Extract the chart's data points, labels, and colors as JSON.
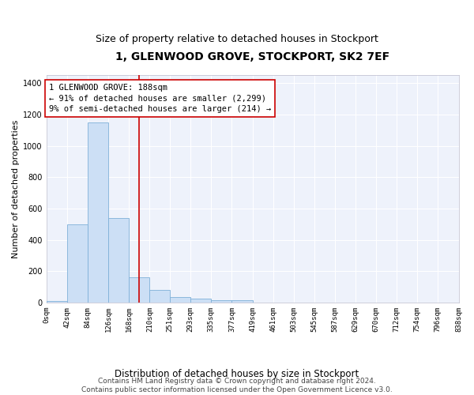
{
  "title": "1, GLENWOOD GROVE, STOCKPORT, SK2 7EF",
  "subtitle": "Size of property relative to detached houses in Stockport",
  "xlabel": "Distribution of detached houses by size in Stockport",
  "ylabel": "Number of detached properties",
  "bar_color": "#ccdff5",
  "bar_edge_color": "#7fb0d8",
  "background_color": "#eef2fb",
  "grid_color": "#ffffff",
  "bin_labels": [
    "0sqm",
    "42sqm",
    "84sqm",
    "126sqm",
    "168sqm",
    "210sqm",
    "251sqm",
    "293sqm",
    "335sqm",
    "377sqm",
    "419sqm",
    "461sqm",
    "503sqm",
    "545sqm",
    "587sqm",
    "629sqm",
    "670sqm",
    "712sqm",
    "754sqm",
    "796sqm",
    "838sqm"
  ],
  "bar_heights": [
    10,
    500,
    1150,
    540,
    160,
    80,
    35,
    25,
    15,
    15,
    0,
    0,
    0,
    0,
    0,
    0,
    0,
    0,
    0,
    0
  ],
  "bin_edges": [
    0,
    42,
    84,
    126,
    168,
    210,
    251,
    293,
    335,
    377,
    419,
    461,
    503,
    545,
    587,
    629,
    670,
    712,
    754,
    796,
    838
  ],
  "property_size": 188,
  "vline_color": "#cc0000",
  "annotation_line1": "1 GLENWOOD GROVE: 188sqm",
  "annotation_line2": "← 91% of detached houses are smaller (2,299)",
  "annotation_line3": "9% of semi-detached houses are larger (214) →",
  "annotation_box_color": "#cc0000",
  "ylim": [
    0,
    1450
  ],
  "yticks": [
    0,
    200,
    400,
    600,
    800,
    1000,
    1200,
    1400
  ],
  "footnote": "Contains HM Land Registry data © Crown copyright and database right 2024.\nContains public sector information licensed under the Open Government Licence v3.0.",
  "title_fontsize": 10,
  "subtitle_fontsize": 9,
  "annotation_fontsize": 7.5,
  "footnote_fontsize": 6.5,
  "ylabel_fontsize": 8,
  "xlabel_fontsize": 8.5,
  "tick_fontsize": 6.5
}
